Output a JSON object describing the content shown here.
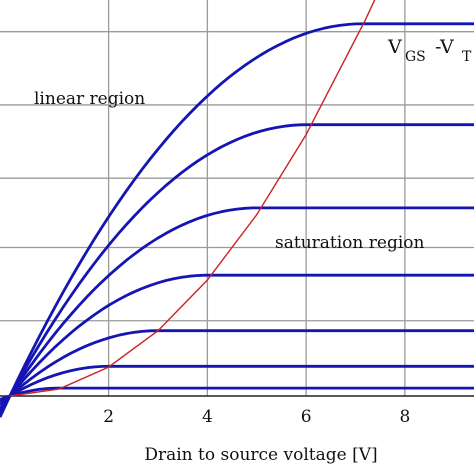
{
  "chart_data": {
    "type": "line",
    "title": "",
    "xlabel": "Drain to source voltage [V]",
    "ylabel": "",
    "xlim": [
      -0.2,
      9.4
    ],
    "ylim": [
      0,
      10
    ],
    "xticks": [
      2,
      4,
      6,
      8
    ],
    "xtick_labels": [
      "2",
      "4",
      "6",
      "8"
    ],
    "grid": true,
    "series": [
      {
        "vov": 7.15,
        "peak": 9.4
      },
      {
        "vov": 6.0,
        "peak": 6.85
      },
      {
        "vov": 5.0,
        "peak": 4.75
      },
      {
        "vov": 4.0,
        "peak": 3.05
      },
      {
        "vov": 3.0,
        "peak": 1.65
      },
      {
        "vov": 2.0,
        "peak": 0.75
      },
      {
        "vov": 1.0,
        "peak": 0.2
      }
    ],
    "boundary": {
      "description_units": "Vds = Vgs - Vt",
      "points": [
        [
          0,
          0
        ],
        [
          1,
          0.18
        ],
        [
          2,
          0.73
        ],
        [
          3,
          1.65
        ],
        [
          4,
          2.93
        ],
        [
          5,
          4.58
        ],
        [
          6,
          6.6
        ],
        [
          7.2,
          9.5
        ],
        [
          7.5,
          10.3
        ]
      ]
    },
    "annotations": {
      "linear": "linear region",
      "saturation": "saturation region",
      "vgs_main": "V",
      "vgs_sub1": "GS",
      "vgs_dash": "-V",
      "vgs_sub2": "T"
    },
    "colors": {
      "curves": "#1515b4",
      "boundary": "#cc2222",
      "grid": "#9a9a9a"
    }
  }
}
